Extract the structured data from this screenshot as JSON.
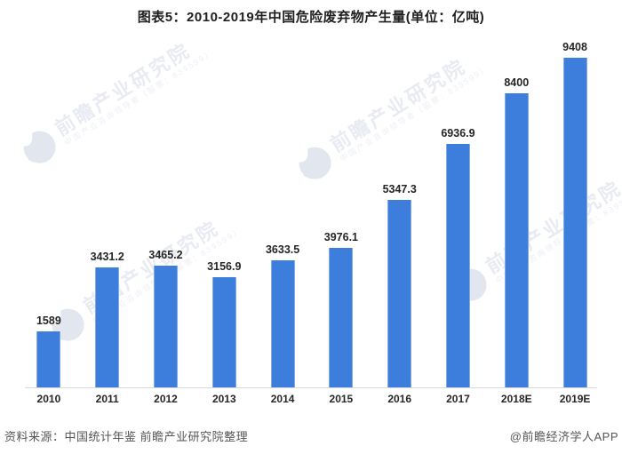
{
  "title": "图表5：2010-2019年中国危险废弃物产生量(单位：亿吨)",
  "chart_data": {
    "type": "bar",
    "title": "图表5：2010-2019年中国危险废弃物产生量(单位：亿吨)",
    "unit": "亿吨",
    "categories": [
      "2010",
      "2011",
      "2012",
      "2013",
      "2014",
      "2015",
      "2016",
      "2017",
      "2018E",
      "2019E"
    ],
    "values": [
      1589,
      3431.2,
      3465.2,
      3156.9,
      3633.5,
      3976.1,
      5347.3,
      6936.9,
      8400,
      9408
    ],
    "value_labels": [
      "1589",
      "3431.2",
      "3465.2",
      "3156.9",
      "3633.5",
      "3976.1",
      "5347.3",
      "6936.9",
      "8400",
      "9408"
    ],
    "xlabel": "",
    "ylabel": "",
    "ylim": [
      0,
      9800
    ],
    "grid": false,
    "legend": false,
    "bar_color": "#3D7EDC"
  },
  "watermark": {
    "brand": "前瞻产业研究院",
    "tagline": "中国产业咨询领导者（股票：839599）",
    "text_color": "#e8ebf2",
    "logo_color": "#e2e6ee"
  },
  "footer": {
    "source": "资料来源：中国统计年鉴 前瞻产业研究院整理",
    "credit": "@前瞻经济学人APP"
  }
}
